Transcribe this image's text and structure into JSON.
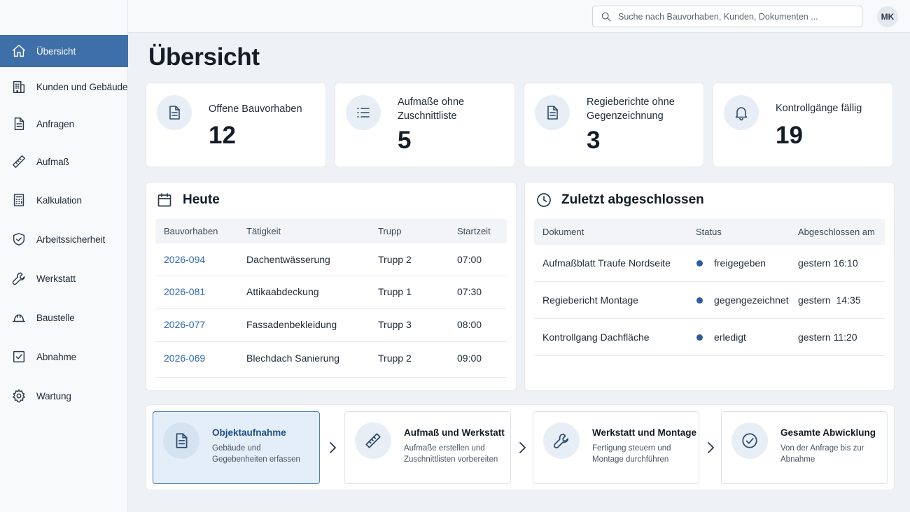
{
  "colors": {
    "accent": "#3f6fa8",
    "link": "#2d68b0",
    "status_dot": "#2b5d9e",
    "background": "#eef1f5"
  },
  "sidebar": {
    "items": [
      {
        "label": "Übersicht",
        "icon": "home-icon",
        "active": true
      },
      {
        "label": "Kunden und Gebäude",
        "icon": "building-icon"
      },
      {
        "label": "Anfragen",
        "icon": "document-icon"
      },
      {
        "label": "Aufmaß",
        "icon": "ruler-icon"
      },
      {
        "label": "Kalkulation",
        "icon": "calculator-icon"
      },
      {
        "label": "Arbeitssicherheit",
        "icon": "shield-icon"
      },
      {
        "label": "Werkstatt",
        "icon": "wrench-icon"
      },
      {
        "label": "Baustelle",
        "icon": "hardhat-icon"
      },
      {
        "label": "Abnahme",
        "icon": "checkbox-icon"
      },
      {
        "label": "Wartung",
        "icon": "gear-icon"
      }
    ]
  },
  "topbar": {
    "search_placeholder": "Suche nach Bauvorhaben, Kunden, Dokumenten ...",
    "user_initials": "MK"
  },
  "page": {
    "title": "Übersicht"
  },
  "kpis": [
    {
      "label": "Offene Bauvorhaben",
      "value": "12",
      "icon": "document-icon"
    },
    {
      "label": "Aufmaße ohne Zuschnittliste",
      "value": "5",
      "icon": "list-icon"
    },
    {
      "label": "Regieberichte ohne Gegenzeichnung",
      "value": "3",
      "icon": "document-icon"
    },
    {
      "label": "Kontrollgänge fällig",
      "value": "19",
      "icon": "bell-icon"
    }
  ],
  "today": {
    "title": "Heute",
    "columns": [
      "Bauvorhaben",
      "Tätigkeit",
      "Trupp",
      "Startzeit"
    ],
    "rows": [
      [
        "2026-094",
        "Dachentwässerung",
        "Trupp 2",
        "07:00"
      ],
      [
        "2026-081",
        "Attikaabdeckung",
        "Trupp 1",
        "07:30"
      ],
      [
        "2026-077",
        "Fassadenbekleidung",
        "Trupp 3",
        "08:00"
      ],
      [
        "2026-069",
        "Blechdach Sanierung",
        "Trupp 2",
        "09:00"
      ]
    ]
  },
  "recent": {
    "title": "Zuletzt abgeschlossen",
    "columns": [
      "Dokument",
      "Status",
      "Abgeschlossen am"
    ],
    "rows": [
      [
        "Aufmaßblatt Traufe Nordseite",
        "freigegeben",
        "gestern 16:10"
      ],
      [
        "Regiebericht Montage",
        "gegengezeichnet",
        "gestern  14:35"
      ],
      [
        "Kontrollgang Dachfläche",
        "erledigt",
        "gestern 11:20"
      ]
    ]
  },
  "workflow": [
    {
      "title": "Objektaufnahme",
      "desc": "Gebäude und Gegebenheiten erfassen",
      "icon": "document-icon",
      "active": true
    },
    {
      "title": "Aufmaß und Werkstatt",
      "desc": "Aufmaße erstellen und Zuschnittlisten vorbereiten",
      "icon": "ruler-icon"
    },
    {
      "title": "Werkstatt und Montage",
      "desc": "Fertigung steuern und Montage durchführen",
      "icon": "wrench-icon"
    },
    {
      "title": "Gesamte Abwicklung",
      "desc": "Von der Anfrage bis zur Abnahme",
      "icon": "check-circle-icon"
    }
  ]
}
